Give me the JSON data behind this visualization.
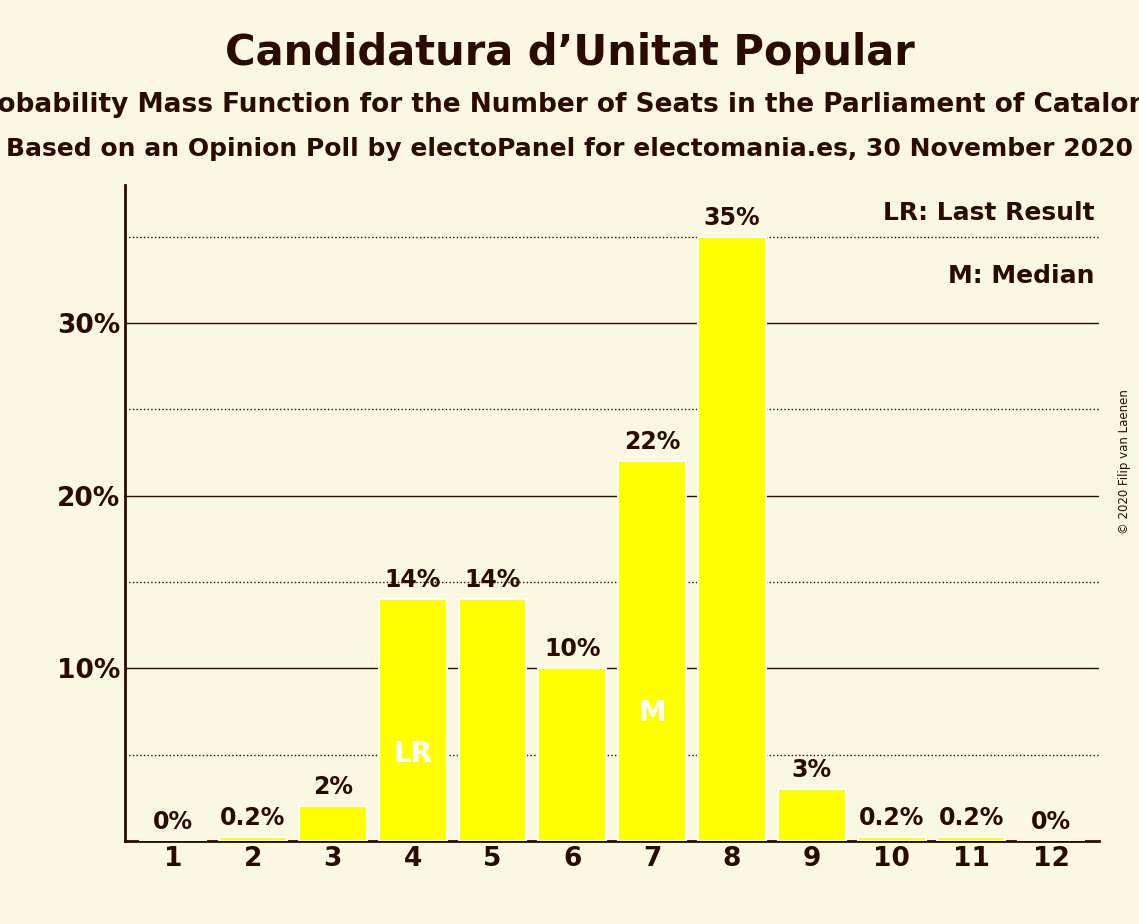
{
  "title": "Candidatura d’Unitat Popular",
  "subtitle1": "Probability Mass Function for the Number of Seats in the Parliament of Catalonia",
  "subtitle2": "Based on an Opinion Poll by electoPanel for electomania.es, 30 November 2020",
  "copyright": "© 2020 Filip van Laenen",
  "seats": [
    1,
    2,
    3,
    4,
    5,
    6,
    7,
    8,
    9,
    10,
    11,
    12
  ],
  "values": [
    0.0,
    0.2,
    2.0,
    14.0,
    14.0,
    10.0,
    22.0,
    35.0,
    3.0,
    0.2,
    0.2,
    0.0
  ],
  "bar_color": "#FFFF00",
  "bar_edgecolor": "#FFFFFF",
  "background_color": "#FAF8E0",
  "text_color": "#2B0A00",
  "last_result_seat": 4,
  "median_seat": 7,
  "lr_label": "LR",
  "m_label": "M",
  "legend_lr": "LR: Last Result",
  "legend_m": "M: Median",
  "ytick_values": [
    10,
    20,
    30
  ],
  "ylim": [
    0,
    38
  ],
  "solid_lines": [
    10,
    20,
    30
  ],
  "dotted_lines": [
    5,
    15,
    25,
    35
  ],
  "title_fontsize": 30,
  "subtitle_fontsize": 19,
  "label_fontsize": 17,
  "tick_fontsize": 19,
  "bar_label_fontsize": 17,
  "inbar_label_fontsize": 20
}
